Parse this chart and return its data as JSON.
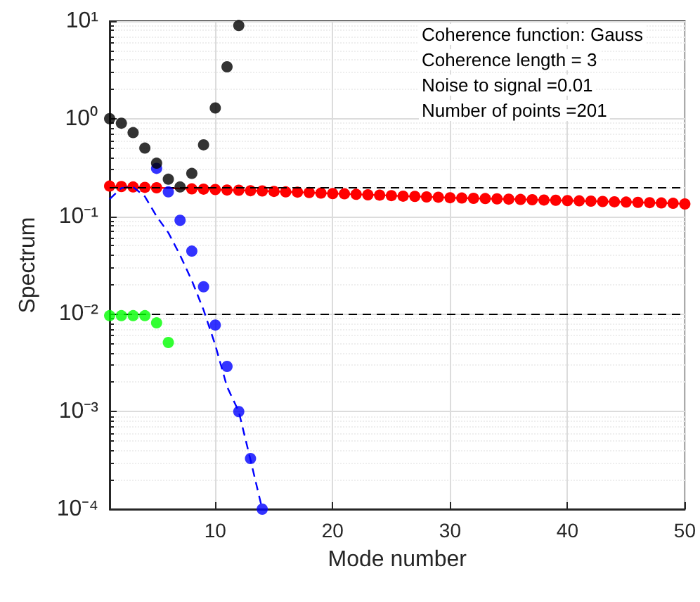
{
  "chart_data": {
    "type": "scatter",
    "xlabel": "Mode number",
    "ylabel": "Spectrum",
    "log": "y",
    "grid": true,
    "legend": false,
    "marker": "circle",
    "xlim": [
      1,
      50
    ],
    "xticks": [
      10,
      20,
      30,
      40,
      50
    ],
    "ylim": [
      0.0001,
      10
    ],
    "yticks": [
      {
        "value": 0.0001,
        "label": "10⁻⁴"
      },
      {
        "value": 0.001,
        "label": "10⁻³"
      },
      {
        "value": 0.01,
        "label": "10⁻²"
      },
      {
        "value": 0.1,
        "label": "10⁻¹"
      },
      {
        "value": 1,
        "label": "10⁰"
      },
      {
        "value": 10,
        "label": "10¹"
      }
    ],
    "annotations": [
      "Coherence function: Gauss",
      "Coherence length = 3",
      "Noise to signal =0.01",
      "Number of points =201"
    ],
    "ref_lines": [
      {
        "axis": "y",
        "value": 0.2,
        "color": "#000000",
        "line_style": "dashed"
      },
      {
        "axis": "y",
        "value": 0.01,
        "color": "#000000",
        "line_style": "dashed"
      }
    ],
    "series": [
      {
        "type": "line",
        "color": "#ff0000",
        "line_style": "solid",
        "x": [
          1,
          2,
          3,
          4,
          5,
          6,
          7,
          8,
          9,
          10,
          11,
          12,
          13,
          14,
          15,
          16,
          17,
          18,
          19,
          20,
          21,
          22,
          23,
          24,
          25,
          26,
          27,
          28,
          29,
          30,
          31,
          32,
          33,
          34,
          35,
          36,
          37,
          38,
          39,
          40,
          41,
          42,
          43,
          44,
          45,
          46,
          47,
          48,
          49,
          50
        ],
        "values": [
          0.204,
          0.202,
          0.2,
          0.198,
          0.196,
          null,
          null,
          0.191,
          0.19,
          0.188,
          0.186,
          0.185,
          0.183,
          0.182,
          0.18,
          0.178,
          0.177,
          0.175,
          0.173,
          0.171,
          0.17,
          0.168,
          0.166,
          0.165,
          0.163,
          0.161,
          0.16,
          0.158,
          0.157,
          0.155,
          0.154,
          0.153,
          0.152,
          0.151,
          0.15,
          0.149,
          0.148,
          0.147,
          0.146,
          0.145,
          0.144,
          0.143,
          0.142,
          0.141,
          0.14,
          0.139,
          0.138,
          0.137,
          0.136,
          0.134
        ]
      },
      {
        "type": "line",
        "color": "#0000ff",
        "line_style": "dashed",
        "marker": "none",
        "x": [
          1,
          2,
          3,
          4,
          5,
          6,
          7,
          8,
          9,
          10,
          11,
          12,
          13,
          14
        ],
        "values": [
          0.15,
          0.195,
          0.2,
          0.16,
          0.1,
          0.068,
          0.04,
          0.022,
          0.011,
          0.0048,
          0.0018,
          0.001,
          0.00032,
          0.0001
        ]
      },
      {
        "color": "#0000ff",
        "x": [
          5,
          6,
          7,
          8,
          9,
          10,
          11,
          12,
          13,
          14
        ],
        "values": [
          0.31,
          0.178,
          0.091,
          0.044,
          0.019,
          0.0077,
          0.0029,
          0.001,
          0.00033,
          0.0001
        ]
      },
      {
        "color": "#000000",
        "x": [
          1,
          2,
          3,
          4,
          5,
          6,
          7,
          8,
          9,
          10,
          11,
          12
        ],
        "values": [
          1.0,
          0.9,
          0.72,
          0.5,
          0.35,
          0.24,
          0.2,
          0.275,
          0.54,
          1.29,
          3.4,
          9
        ]
      },
      {
        "color": "#00ff00",
        "x": [
          1,
          2,
          3,
          4,
          5,
          6
        ],
        "values": [
          0.0096,
          0.0096,
          0.0096,
          0.0096,
          0.0081,
          0.0051
        ]
      }
    ]
  }
}
